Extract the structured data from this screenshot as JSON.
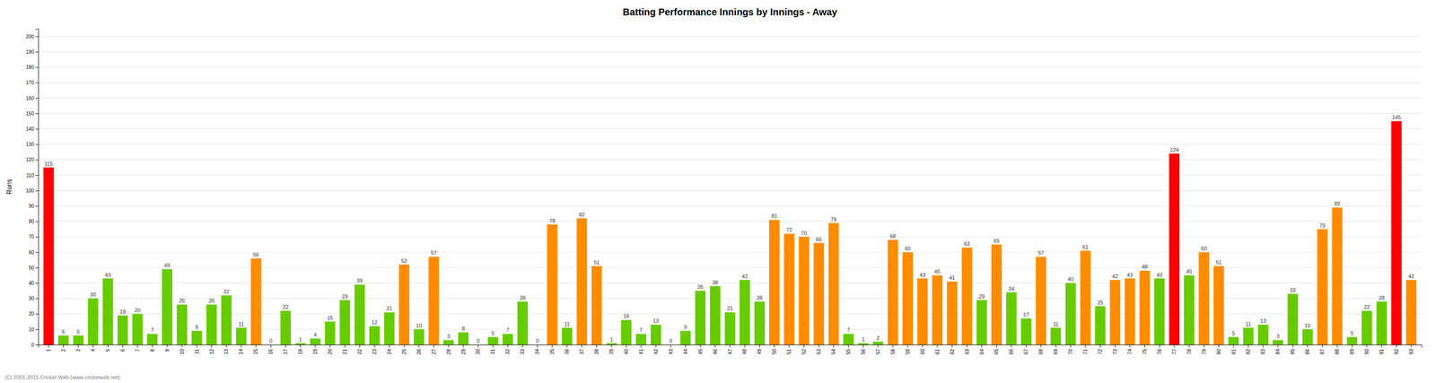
{
  "chart_data": {
    "type": "bar",
    "title": "Batting Performance Innings by Innings - Away",
    "ylabel": "Runs",
    "categories": [
      "1",
      "2",
      "3",
      "4",
      "5",
      "6",
      "7",
      "8",
      "9",
      "10",
      "11",
      "12",
      "13",
      "14",
      "15",
      "16",
      "17",
      "18",
      "19",
      "20",
      "21",
      "22",
      "23",
      "24",
      "25",
      "26",
      "27",
      "28",
      "29",
      "30",
      "31",
      "32",
      "33",
      "34",
      "35",
      "36",
      "37",
      "38",
      "39",
      "40",
      "41",
      "42",
      "43",
      "44",
      "45",
      "46",
      "47",
      "48",
      "49",
      "50",
      "51",
      "52",
      "53",
      "54",
      "55",
      "56",
      "57",
      "58",
      "59",
      "60",
      "61",
      "62",
      "63",
      "64",
      "65",
      "66",
      "67",
      "68",
      "69",
      "70",
      "71",
      "72",
      "73",
      "74",
      "75",
      "76",
      "77",
      "78",
      "79",
      "80",
      "81",
      "82",
      "83",
      "84",
      "85",
      "86",
      "87",
      "88",
      "89",
      "90",
      "91",
      "92",
      "93"
    ],
    "values": [
      115,
      6,
      6,
      30,
      43,
      19,
      20,
      7,
      49,
      26,
      9,
      26,
      32,
      11,
      56,
      0,
      22,
      1,
      4,
      15,
      29,
      39,
      12,
      21,
      52,
      10,
      57,
      3,
      8,
      0,
      5,
      7,
      28,
      0,
      78,
      11,
      82,
      51,
      1,
      16,
      7,
      13,
      0,
      9,
      35,
      38,
      21,
      42,
      28,
      81,
      72,
      70,
      66,
      79,
      7,
      1,
      2,
      68,
      60,
      43,
      45,
      41,
      63,
      29,
      65,
      34,
      17,
      57,
      11,
      40,
      61,
      25,
      42,
      43,
      48,
      43,
      124,
      45,
      60,
      51,
      5,
      11,
      13,
      3,
      33,
      10,
      75,
      89,
      5,
      22,
      28,
      145,
      42
    ],
    "colors": [
      "#ff0000",
      "#66cc00",
      "#66cc00",
      "#66cc00",
      "#66cc00",
      "#66cc00",
      "#66cc00",
      "#66cc00",
      "#66cc00",
      "#66cc00",
      "#66cc00",
      "#66cc00",
      "#66cc00",
      "#66cc00",
      "#ff8c00",
      "#66cc00",
      "#66cc00",
      "#66cc00",
      "#66cc00",
      "#66cc00",
      "#66cc00",
      "#66cc00",
      "#66cc00",
      "#66cc00",
      "#ff8c00",
      "#66cc00",
      "#ff8c00",
      "#66cc00",
      "#66cc00",
      "#66cc00",
      "#66cc00",
      "#66cc00",
      "#66cc00",
      "#66cc00",
      "#ff8c00",
      "#66cc00",
      "#ff8c00",
      "#ff8c00",
      "#66cc00",
      "#66cc00",
      "#66cc00",
      "#66cc00",
      "#66cc00",
      "#66cc00",
      "#66cc00",
      "#66cc00",
      "#66cc00",
      "#66cc00",
      "#66cc00",
      "#ff8c00",
      "#ff8c00",
      "#ff8c00",
      "#ff8c00",
      "#ff8c00",
      "#66cc00",
      "#66cc00",
      "#66cc00",
      "#ff8c00",
      "#ff8c00",
      "#ff8c00",
      "#ff8c00",
      "#ff8c00",
      "#ff8c00",
      "#66cc00",
      "#ff8c00",
      "#66cc00",
      "#66cc00",
      "#ff8c00",
      "#66cc00",
      "#66cc00",
      "#ff8c00",
      "#66cc00",
      "#ff8c00",
      "#ff8c00",
      "#ff8c00",
      "#66cc00",
      "#ff0000",
      "#66cc00",
      "#ff8c00",
      "#ff8c00",
      "#66cc00",
      "#66cc00",
      "#66cc00",
      "#66cc00",
      "#66cc00",
      "#66cc00",
      "#ff8c00",
      "#ff8c00",
      "#66cc00",
      "#66cc00",
      "#66cc00",
      "#ff0000",
      "#ff8c00"
    ],
    "ylim": [
      0,
      205
    ],
    "yticks": [
      0,
      10,
      20,
      30,
      40,
      50,
      60,
      70,
      80,
      90,
      100,
      110,
      120,
      130,
      140,
      150,
      160,
      170,
      180,
      190,
      200
    ],
    "grid": true,
    "data_labels": true,
    "annotations": [
      "(C) 2001-2015 Cricket Web (www.cricketweb.net)"
    ]
  }
}
